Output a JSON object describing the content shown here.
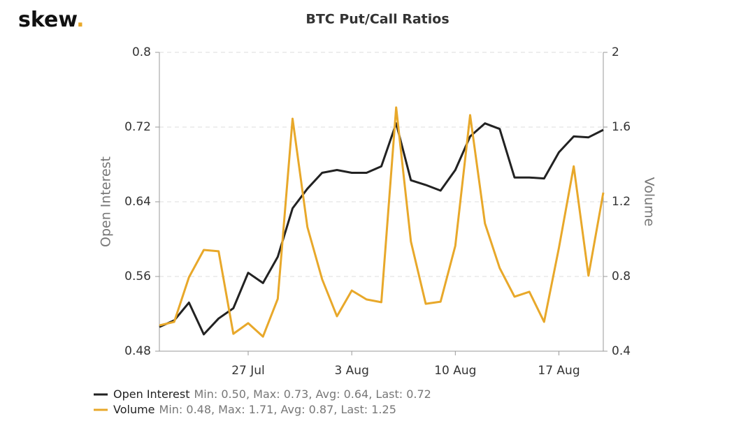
{
  "brand": {
    "name": "skew",
    "dot": "."
  },
  "chart_data": {
    "type": "line",
    "title": "BTC Put/Call Ratios",
    "ylabel": "Open Interest",
    "y2label": "Volume",
    "categories": [
      null,
      null,
      null,
      null,
      null,
      null,
      "27 Jul",
      null,
      null,
      null,
      null,
      null,
      null,
      "3 Aug",
      null,
      null,
      null,
      null,
      null,
      null,
      "10 Aug",
      null,
      null,
      null,
      null,
      null,
      null,
      "17 Aug",
      null,
      null,
      null
    ],
    "series": [
      {
        "name": "Open Interest",
        "stats": "Min: 0.50, Max: 0.73, Avg: 0.64, Last: 0.72",
        "color": "#222222",
        "values": [
          0.506,
          0.513,
          0.532,
          0.498,
          0.515,
          0.526,
          0.564,
          0.553,
          0.581,
          0.633,
          0.654,
          0.671,
          0.674,
          0.671,
          0.671,
          0.678,
          0.724,
          0.663,
          0.658,
          0.652,
          0.674,
          0.71,
          0.724,
          0.718,
          0.666,
          0.666,
          0.665,
          0.693,
          0.71,
          0.709,
          0.717
        ]
      },
      {
        "name": "Volume",
        "stats": "Min: 0.48, Max: 1.71, Avg: 0.87, Last: 1.25",
        "color": "#e8a82a",
        "axis": "y2",
        "values": [
          0.538,
          0.557,
          0.796,
          0.942,
          0.935,
          0.493,
          0.55,
          0.478,
          0.68,
          1.645,
          1.065,
          0.785,
          0.587,
          0.725,
          0.677,
          0.662,
          1.705,
          0.987,
          0.654,
          0.665,
          0.964,
          1.664,
          1.084,
          0.845,
          0.692,
          0.718,
          0.557,
          0.953,
          1.39,
          0.804,
          1.249
        ]
      }
    ],
    "ylim": [
      0.48,
      0.8
    ],
    "yticks": [
      0.48,
      0.56,
      0.64,
      0.72,
      0.8
    ],
    "y2lim": [
      0.4,
      2
    ],
    "y2ticks": [
      0.4,
      0.8,
      1.2,
      1.6,
      2
    ],
    "grid": true
  }
}
